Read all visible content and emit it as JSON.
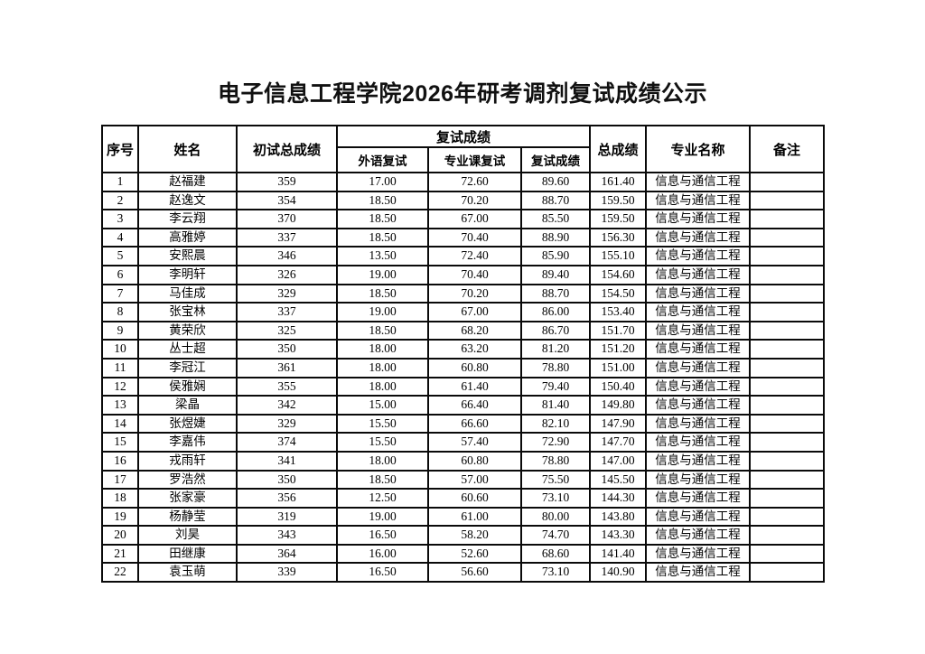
{
  "page": {
    "title": "电子信息工程学院2026年研考调剂复试成绩公示"
  },
  "table": {
    "headers": {
      "index": "序号",
      "name": "姓名",
      "initial_score": "初试总成绩",
      "retest_group": "复试成绩",
      "foreign_language": "外语复试",
      "professional_course": "专业课复试",
      "retest_score": "复试成绩",
      "total_score": "总成绩",
      "major": "专业名称",
      "remark": "备注"
    },
    "column_keys": [
      "index",
      "name",
      "initial",
      "foreign",
      "course",
      "retest",
      "total",
      "major",
      "remark"
    ],
    "rows": [
      {
        "index": "1",
        "name": "赵福建",
        "initial": "359",
        "foreign": "17.00",
        "course": "72.60",
        "retest": "89.60",
        "total": "161.40",
        "major": "信息与通信工程",
        "remark": ""
      },
      {
        "index": "2",
        "name": "赵逸文",
        "initial": "354",
        "foreign": "18.50",
        "course": "70.20",
        "retest": "88.70",
        "total": "159.50",
        "major": "信息与通信工程",
        "remark": ""
      },
      {
        "index": "3",
        "name": "李云翔",
        "initial": "370",
        "foreign": "18.50",
        "course": "67.00",
        "retest": "85.50",
        "total": "159.50",
        "major": "信息与通信工程",
        "remark": ""
      },
      {
        "index": "4",
        "name": "高雅婷",
        "initial": "337",
        "foreign": "18.50",
        "course": "70.40",
        "retest": "88.90",
        "total": "156.30",
        "major": "信息与通信工程",
        "remark": ""
      },
      {
        "index": "5",
        "name": "安熙晨",
        "initial": "346",
        "foreign": "13.50",
        "course": "72.40",
        "retest": "85.90",
        "total": "155.10",
        "major": "信息与通信工程",
        "remark": ""
      },
      {
        "index": "6",
        "name": "李明轩",
        "initial": "326",
        "foreign": "19.00",
        "course": "70.40",
        "retest": "89.40",
        "total": "154.60",
        "major": "信息与通信工程",
        "remark": ""
      },
      {
        "index": "7",
        "name": "马佳成",
        "initial": "329",
        "foreign": "18.50",
        "course": "70.20",
        "retest": "88.70",
        "total": "154.50",
        "major": "信息与通信工程",
        "remark": ""
      },
      {
        "index": "8",
        "name": "张宝林",
        "initial": "337",
        "foreign": "19.00",
        "course": "67.00",
        "retest": "86.00",
        "total": "153.40",
        "major": "信息与通信工程",
        "remark": ""
      },
      {
        "index": "9",
        "name": "黄荣欣",
        "initial": "325",
        "foreign": "18.50",
        "course": "68.20",
        "retest": "86.70",
        "total": "151.70",
        "major": "信息与通信工程",
        "remark": ""
      },
      {
        "index": "10",
        "name": "丛士超",
        "initial": "350",
        "foreign": "18.00",
        "course": "63.20",
        "retest": "81.20",
        "total": "151.20",
        "major": "信息与通信工程",
        "remark": ""
      },
      {
        "index": "11",
        "name": "李冠江",
        "initial": "361",
        "foreign": "18.00",
        "course": "60.80",
        "retest": "78.80",
        "total": "151.00",
        "major": "信息与通信工程",
        "remark": ""
      },
      {
        "index": "12",
        "name": "侯雅娴",
        "initial": "355",
        "foreign": "18.00",
        "course": "61.40",
        "retest": "79.40",
        "total": "150.40",
        "major": "信息与通信工程",
        "remark": ""
      },
      {
        "index": "13",
        "name": "梁晶",
        "initial": "342",
        "foreign": "15.00",
        "course": "66.40",
        "retest": "81.40",
        "total": "149.80",
        "major": "信息与通信工程",
        "remark": ""
      },
      {
        "index": "14",
        "name": "张煜婕",
        "initial": "329",
        "foreign": "15.50",
        "course": "66.60",
        "retest": "82.10",
        "total": "147.90",
        "major": "信息与通信工程",
        "remark": ""
      },
      {
        "index": "15",
        "name": "李嘉伟",
        "initial": "374",
        "foreign": "15.50",
        "course": "57.40",
        "retest": "72.90",
        "total": "147.70",
        "major": "信息与通信工程",
        "remark": ""
      },
      {
        "index": "16",
        "name": "戎雨轩",
        "initial": "341",
        "foreign": "18.00",
        "course": "60.80",
        "retest": "78.80",
        "total": "147.00",
        "major": "信息与通信工程",
        "remark": ""
      },
      {
        "index": "17",
        "name": "罗浩然",
        "initial": "350",
        "foreign": "18.50",
        "course": "57.00",
        "retest": "75.50",
        "total": "145.50",
        "major": "信息与通信工程",
        "remark": ""
      },
      {
        "index": "18",
        "name": "张家豪",
        "initial": "356",
        "foreign": "12.50",
        "course": "60.60",
        "retest": "73.10",
        "total": "144.30",
        "major": "信息与通信工程",
        "remark": ""
      },
      {
        "index": "19",
        "name": "杨静莹",
        "initial": "319",
        "foreign": "19.00",
        "course": "61.00",
        "retest": "80.00",
        "total": "143.80",
        "major": "信息与通信工程",
        "remark": ""
      },
      {
        "index": "20",
        "name": "刘昊",
        "initial": "343",
        "foreign": "16.50",
        "course": "58.20",
        "retest": "74.70",
        "total": "143.30",
        "major": "信息与通信工程",
        "remark": ""
      },
      {
        "index": "21",
        "name": "田继康",
        "initial": "364",
        "foreign": "16.00",
        "course": "52.60",
        "retest": "68.60",
        "total": "141.40",
        "major": "信息与通信工程",
        "remark": ""
      },
      {
        "index": "22",
        "name": "袁玉萌",
        "initial": "339",
        "foreign": "16.50",
        "course": "56.60",
        "retest": "73.10",
        "total": "140.90",
        "major": "信息与通信工程",
        "remark": ""
      }
    ]
  }
}
